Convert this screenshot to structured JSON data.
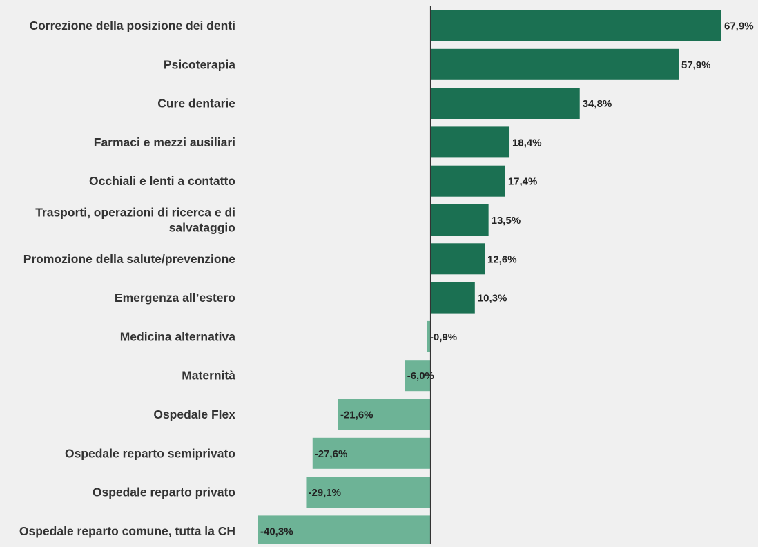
{
  "chart_data": {
    "type": "bar",
    "orientation": "horizontal",
    "categories": [
      "Correzione della posizione dei denti",
      "Psicoterapia",
      "Cure dentarie",
      "Farmaci e mezzi ausiliari",
      "Occhiali e lenti a contatto",
      "Trasporti, operazioni di ricerca e di salvataggio",
      "Promozione della salute/prevenzione",
      "Emergenza all’estero",
      "Medicina alternativa",
      "Maternità",
      "Ospedale Flex",
      "Ospedale reparto semiprivato",
      "Ospedale reparto privato",
      "Ospedale reparto comune, tutta la CH"
    ],
    "category_label_lines": [
      [
        "Correzione della posizione dei denti"
      ],
      [
        "Psicoterapia"
      ],
      [
        "Cure dentarie"
      ],
      [
        "Farmaci e mezzi ausiliari"
      ],
      [
        "Occhiali e lenti a contatto"
      ],
      [
        "Trasporti, operazioni di ricerca e di",
        "salvataggio"
      ],
      [
        "Promozione della salute/prevenzione"
      ],
      [
        "Emergenza all’estero"
      ],
      [
        "Medicina alternativa"
      ],
      [
        "Maternità"
      ],
      [
        "Ospedale Flex"
      ],
      [
        "Ospedale reparto semiprivato"
      ],
      [
        "Ospedale reparto privato"
      ],
      [
        "Ospedale reparto comune, tutta la CH"
      ]
    ],
    "values": [
      67.9,
      57.9,
      34.8,
      18.4,
      17.4,
      13.5,
      12.6,
      10.3,
      -0.9,
      -6.0,
      -21.6,
      -27.6,
      -29.1,
      -40.3
    ],
    "value_labels": [
      "67,9%",
      "57,9%",
      "34,8%",
      "18,4%",
      "17,4%",
      "13,5%",
      "12,6%",
      "10,3%",
      "-0,9%",
      "-6,0%",
      "-21,6%",
      "-27,6%",
      "-29,1%",
      "-40,3%"
    ],
    "title": "",
    "xlabel": "",
    "ylabel": "",
    "xlim": [
      -40.3,
      67.9
    ],
    "grid": false,
    "legend": "none",
    "colors": {
      "positive": "#1b7052",
      "negative": "#6db396",
      "axis": "#333333",
      "background": "#f0f0f0"
    }
  }
}
